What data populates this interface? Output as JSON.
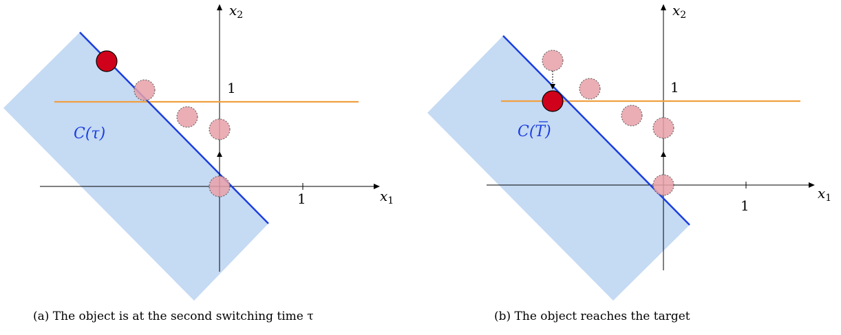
{
  "panel_a": {
    "x1_label": "x",
    "x1_sub": "1",
    "x2_label": "x",
    "x2_sub": "2",
    "tick_x": "1",
    "tick_y": "1",
    "region_label": "C(τ)",
    "caption": "(a) The object is at the second switching time τ"
  },
  "panel_b": {
    "x1_label": "x",
    "x1_sub": "1",
    "x2_label": "x",
    "x2_sub": "2",
    "tick_x": "1",
    "tick_y": "1",
    "region_label_pre": "C(",
    "region_label_t": "T",
    "region_label_post": ")",
    "caption": "(b) The object reaches the target"
  },
  "colors": {
    "region_fill": "#c5daf3",
    "boundary_line": "#1a3de0",
    "target_line": "#f0a040",
    "object": "#d0021b",
    "ghost": "#e8a0a8",
    "region_text": "#1a3de0"
  }
}
